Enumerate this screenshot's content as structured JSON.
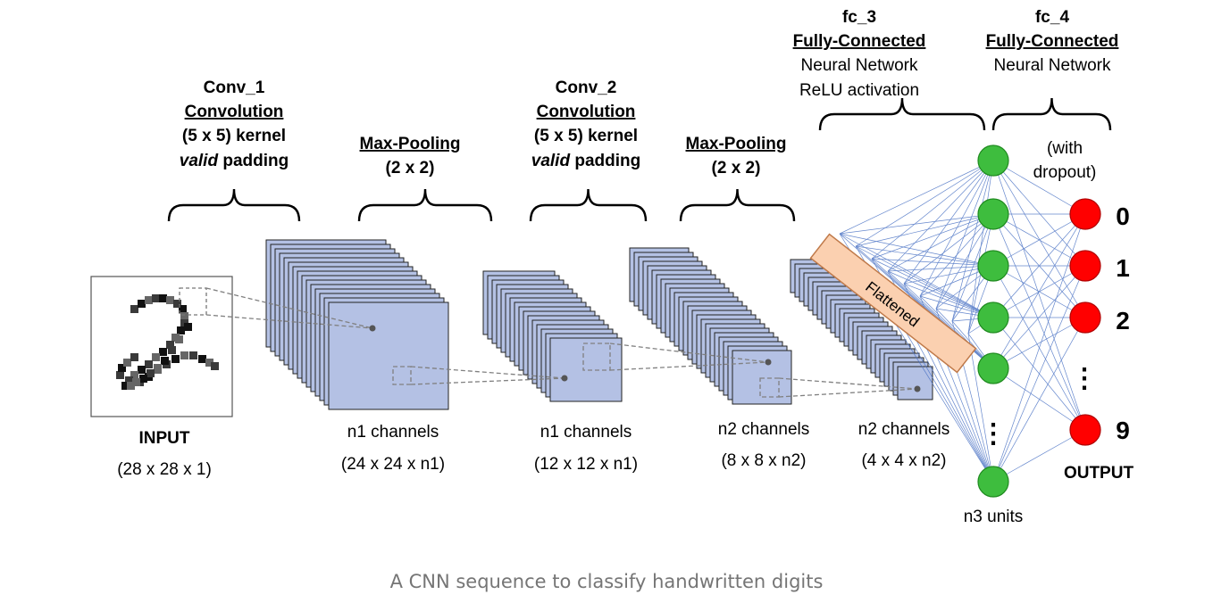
{
  "stages": {
    "conv1": {
      "line1": "Conv_1",
      "line2": "Convolution",
      "line3": "(5 x 5) kernel",
      "line4_em": "valid",
      "line4_rest": " padding"
    },
    "pool1": {
      "line1": "Max-Pooling",
      "line2": "(2 x 2)"
    },
    "conv2": {
      "line1": "Conv_2",
      "line2": "Convolution",
      "line3": "(5 x 5) kernel",
      "line4_em": "valid",
      "line4_rest": " padding"
    },
    "pool2": {
      "line1": "Max-Pooling",
      "line2": "(2 x 2)"
    },
    "fc3": {
      "line1": "fc_3",
      "line2": "Fully-Connected",
      "line3": "Neural Network",
      "line4": "ReLU activation"
    },
    "fc4": {
      "line1": "fc_4",
      "line2": "Fully-Connected",
      "line3": "Neural Network"
    }
  },
  "dropout": {
    "line1": "(with",
    "line2": "dropout)"
  },
  "flattened": "Flattened",
  "layers": {
    "input": {
      "name": "INPUT",
      "dims": "(28 x 28 x 1)"
    },
    "l1": {
      "name": "n1 channels",
      "dims": "(24 x 24 x n1)"
    },
    "l2": {
      "name": "n1 channels",
      "dims": "(12 x 12 x n1)"
    },
    "l3": {
      "name": "n2 channels",
      "dims": "(8 x 8 x n2)"
    },
    "l4": {
      "name": "n2 channels",
      "dims": "(4 x 4 x n2)"
    }
  },
  "hidden_units_label": "n3 units",
  "output": {
    "label": "OUTPUT",
    "digits": [
      "0",
      "1",
      "2",
      "9"
    ],
    "ellipsis": "⋮"
  },
  "caption": "A CNN sequence to classify handwritten digits",
  "colors": {
    "feature_map": "#b4c1e4",
    "hidden_node": "#3ebd3e",
    "output_node": "#ff0000",
    "flatten_bar": "#fbd0b0",
    "connection": "#4a72c4"
  }
}
